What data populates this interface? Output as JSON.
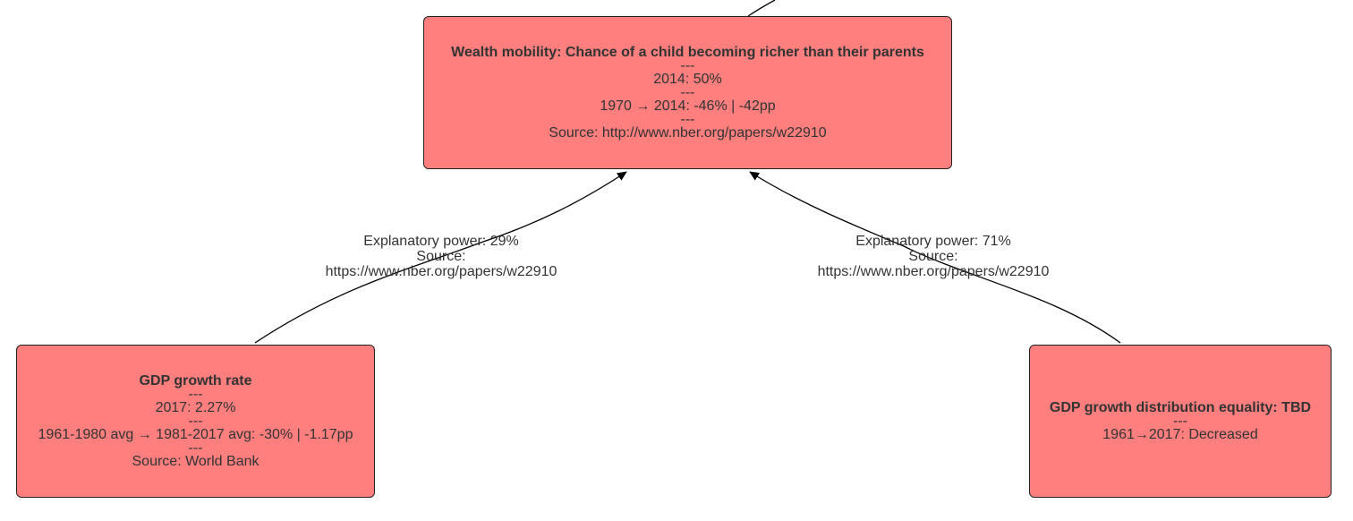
{
  "colors": {
    "node_fill": "#ff7f7f",
    "node_border": "#222222",
    "edge": "#000000",
    "text": "#333333"
  },
  "nodes": {
    "wealth_mobility": {
      "title": "Wealth mobility: Chance of a child becoming richer than their parents",
      "sep1": "---",
      "value": "2014: 50%",
      "sep2": "---",
      "change": "1970 → 2014: -46% | -42pp",
      "sep3": "---",
      "source": "Source: http://www.nber.org/papers/w22910"
    },
    "gdp_growth": {
      "title": "GDP growth rate",
      "sep1": "---",
      "value": "2017: 2.27%",
      "sep2": "---",
      "change": "1961-1980 avg → 1981-2017 avg: -30% | -1.17pp",
      "sep3": "---",
      "source": "Source: World Bank"
    },
    "gdp_equality": {
      "title": "GDP growth distribution equality: TBD",
      "sep1": "---",
      "change": "1961→2017: Decreased"
    }
  },
  "edges": {
    "left": {
      "power": "Explanatory power: 29%",
      "source_label": "Source:",
      "source_url": "https://www.nber.org/papers/w22910"
    },
    "right": {
      "power": "Explanatory power: 71%",
      "source_label": "Source:",
      "source_url": "https://www.nber.org/papers/w22910"
    }
  }
}
